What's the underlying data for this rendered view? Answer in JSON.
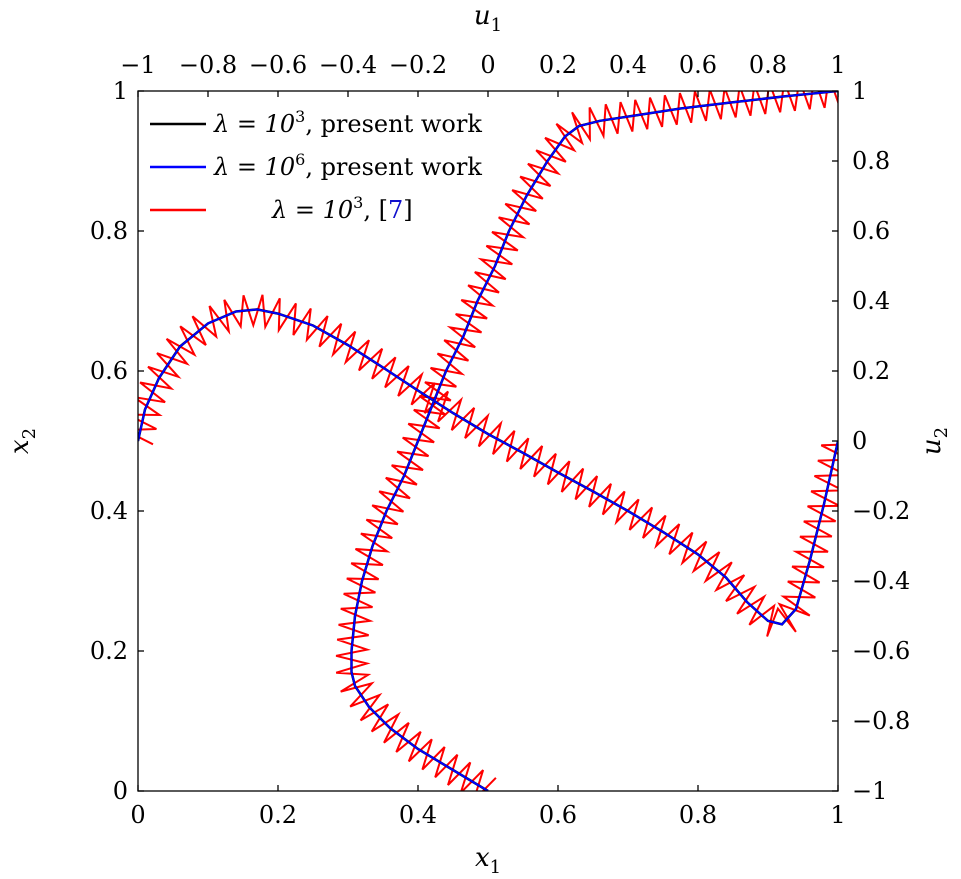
{
  "chart_data": {
    "type": "line",
    "axes": {
      "bottom": {
        "label": "x",
        "label_sub": "1",
        "range": [
          0,
          1
        ],
        "ticks": [
          "0",
          "0.2",
          "0.4",
          "0.6",
          "0.8",
          "1"
        ]
      },
      "left": {
        "label": "x",
        "label_sub": "2",
        "range": [
          0,
          1
        ],
        "ticks": [
          "0",
          "0.2",
          "0.4",
          "0.6",
          "0.8",
          "1"
        ]
      },
      "top": {
        "label": "u",
        "label_sub": "1",
        "range": [
          -1,
          1
        ],
        "ticks": [
          "−1",
          "−0.8",
          "−0.6",
          "−0.4",
          "−0.2",
          "0",
          "0.2",
          "0.4",
          "0.6",
          "0.8",
          "1"
        ]
      },
      "right": {
        "label": "u",
        "label_sub": "2",
        "range": [
          -1,
          1
        ],
        "ticks": [
          "−1",
          "−0.8",
          "−0.6",
          "−0.4",
          "−0.2",
          "0",
          "0.2",
          "0.4",
          "0.6",
          "0.8",
          "1"
        ]
      }
    },
    "grid": false,
    "legend_position": "top-left",
    "legend": [
      {
        "prefix": "λ = 10",
        "exponent": "3",
        "suffix": ", present work",
        "cite": "",
        "color": "#000000"
      },
      {
        "prefix": "λ = 10",
        "exponent": "6",
        "suffix": ", present work",
        "cite": "",
        "color": "#0000ff"
      },
      {
        "prefix": "λ = 10",
        "exponent": "3",
        "suffix": ", [",
        "cite": "7",
        "close": "]",
        "color": "#ff0000"
      }
    ],
    "series": [
      {
        "legend_index": 1,
        "color": "#0000ff",
        "curves": [
          {
            "axes": "bottom-left",
            "points": [
              [
                0,
                0.5
              ],
              [
                0.01,
                0.545
              ],
              [
                0.03,
                0.59
              ],
              [
                0.06,
                0.635
              ],
              [
                0.1,
                0.668
              ],
              [
                0.14,
                0.685
              ],
              [
                0.17,
                0.688
              ],
              [
                0.2,
                0.682
              ],
              [
                0.25,
                0.665
              ],
              [
                0.3,
                0.637
              ],
              [
                0.35,
                0.605
              ],
              [
                0.4,
                0.572
              ],
              [
                0.45,
                0.54
              ],
              [
                0.5,
                0.51
              ],
              [
                0.55,
                0.483
              ],
              [
                0.6,
                0.455
              ],
              [
                0.65,
                0.428
              ],
              [
                0.7,
                0.4
              ],
              [
                0.75,
                0.37
              ],
              [
                0.8,
                0.338
              ],
              [
                0.84,
                0.305
              ],
              [
                0.87,
                0.27
              ],
              [
                0.9,
                0.243
              ],
              [
                0.92,
                0.238
              ],
              [
                0.94,
                0.26
              ],
              [
                0.96,
                0.33
              ],
              [
                0.98,
                0.41
              ],
              [
                1.0,
                0.5
              ]
            ]
          },
          {
            "axes": "top-right",
            "points": [
              [
                0.0,
                -1.0
              ],
              [
                -0.1,
                -0.94
              ],
              [
                -0.2,
                -0.88
              ],
              [
                -0.28,
                -0.82
              ],
              [
                -0.34,
                -0.76
              ],
              [
                -0.38,
                -0.7
              ],
              [
                -0.39,
                -0.66
              ],
              [
                -0.39,
                -0.6
              ],
              [
                -0.38,
                -0.5
              ],
              [
                -0.36,
                -0.4
              ],
              [
                -0.33,
                -0.3
              ],
              [
                -0.29,
                -0.2
              ],
              [
                -0.24,
                -0.1
              ],
              [
                -0.2,
                0.0
              ],
              [
                -0.16,
                0.1
              ],
              [
                -0.12,
                0.2
              ],
              [
                -0.07,
                0.3
              ],
              [
                -0.03,
                0.4
              ],
              [
                0.02,
                0.5
              ],
              [
                0.06,
                0.6
              ],
              [
                0.11,
                0.7
              ],
              [
                0.17,
                0.8
              ],
              [
                0.22,
                0.87
              ],
              [
                0.26,
                0.9
              ],
              [
                0.32,
                0.915
              ],
              [
                0.42,
                0.93
              ],
              [
                0.55,
                0.95
              ],
              [
                0.7,
                0.968
              ],
              [
                0.85,
                0.985
              ],
              [
                1.0,
                1.0
              ]
            ]
          }
        ]
      },
      {
        "legend_index": 2,
        "color": "#ff0000",
        "amplitude": 0.022,
        "curves": [
          {
            "axes": "bottom-left",
            "teeth": 64
          },
          {
            "axes": "top-right",
            "teeth": 70
          }
        ]
      }
    ]
  }
}
